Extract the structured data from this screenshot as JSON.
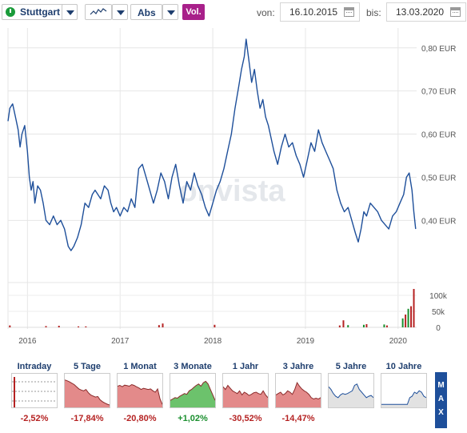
{
  "toolbar": {
    "exchange": "Stuttgart",
    "scale": "Abs",
    "volume_button": "Vol.",
    "from_label": "von:",
    "from_date": "16.10.2015",
    "to_label": "bis:",
    "to_date": "13.03.2020"
  },
  "watermark": "onvista",
  "colors": {
    "line": "#1e4f9a",
    "volume_red": "#b52222",
    "volume_green": "#1a8f2e",
    "perf_negative": "#b52222",
    "perf_positive": "#1a8f2e",
    "vol_button": "#a8208a"
  },
  "chart_data": {
    "type": "line",
    "y_unit": "EUR",
    "ylim": [
      0.28,
      0.82
    ],
    "yticks": [
      "0,80 EUR",
      "0,70 EUR",
      "0,60 EUR",
      "0,50 EUR",
      "0,40 EUR"
    ],
    "ytick_values": [
      0.8,
      0.7,
      0.6,
      0.5,
      0.4
    ],
    "xticks": [
      "2016",
      "2017",
      "2018",
      "2019",
      "2020"
    ],
    "xtick_values": [
      2016.0,
      2017.0,
      2018.0,
      2019.0,
      2020.0
    ],
    "x_start": 2015.79,
    "x_end": 2020.2,
    "series": [
      {
        "values": [
          [
            2015.79,
            0.63
          ],
          [
            2015.81,
            0.66
          ],
          [
            2015.84,
            0.67
          ],
          [
            2015.87,
            0.64
          ],
          [
            2015.9,
            0.61
          ],
          [
            2015.92,
            0.57
          ],
          [
            2015.94,
            0.6
          ],
          [
            2015.97,
            0.62
          ],
          [
            2016.0,
            0.56
          ],
          [
            2016.02,
            0.5
          ],
          [
            2016.04,
            0.47
          ],
          [
            2016.06,
            0.49
          ],
          [
            2016.08,
            0.44
          ],
          [
            2016.11,
            0.48
          ],
          [
            2016.14,
            0.47
          ],
          [
            2016.17,
            0.44
          ],
          [
            2016.2,
            0.4
          ],
          [
            2016.24,
            0.39
          ],
          [
            2016.28,
            0.41
          ],
          [
            2016.32,
            0.39
          ],
          [
            2016.36,
            0.4
          ],
          [
            2016.4,
            0.38
          ],
          [
            2016.44,
            0.34
          ],
          [
            2016.47,
            0.33
          ],
          [
            2016.5,
            0.34
          ],
          [
            2016.54,
            0.36
          ],
          [
            2016.58,
            0.39
          ],
          [
            2016.62,
            0.44
          ],
          [
            2016.66,
            0.43
          ],
          [
            2016.7,
            0.46
          ],
          [
            2016.73,
            0.47
          ],
          [
            2016.76,
            0.46
          ],
          [
            2016.79,
            0.45
          ],
          [
            2016.83,
            0.48
          ],
          [
            2016.87,
            0.47
          ],
          [
            2016.9,
            0.44
          ],
          [
            2016.93,
            0.42
          ],
          [
            2016.96,
            0.43
          ],
          [
            2017.0,
            0.41
          ],
          [
            2017.04,
            0.43
          ],
          [
            2017.08,
            0.42
          ],
          [
            2017.12,
            0.45
          ],
          [
            2017.16,
            0.43
          ],
          [
            2017.2,
            0.52
          ],
          [
            2017.24,
            0.53
          ],
          [
            2017.28,
            0.5
          ],
          [
            2017.32,
            0.47
          ],
          [
            2017.36,
            0.44
          ],
          [
            2017.4,
            0.47
          ],
          [
            2017.44,
            0.51
          ],
          [
            2017.48,
            0.49
          ],
          [
            2017.52,
            0.45
          ],
          [
            2017.56,
            0.5
          ],
          [
            2017.6,
            0.53
          ],
          [
            2017.64,
            0.48
          ],
          [
            2017.68,
            0.44
          ],
          [
            2017.72,
            0.49
          ],
          [
            2017.76,
            0.47
          ],
          [
            2017.8,
            0.51
          ],
          [
            2017.84,
            0.48
          ],
          [
            2017.88,
            0.46
          ],
          [
            2017.92,
            0.43
          ],
          [
            2017.96,
            0.41
          ],
          [
            2018.0,
            0.44
          ],
          [
            2018.04,
            0.47
          ],
          [
            2018.08,
            0.49
          ],
          [
            2018.12,
            0.52
          ],
          [
            2018.16,
            0.56
          ],
          [
            2018.2,
            0.6
          ],
          [
            2018.24,
            0.66
          ],
          [
            2018.28,
            0.71
          ],
          [
            2018.31,
            0.75
          ],
          [
            2018.34,
            0.78
          ],
          [
            2018.36,
            0.82
          ],
          [
            2018.39,
            0.77
          ],
          [
            2018.42,
            0.72
          ],
          [
            2018.45,
            0.75
          ],
          [
            2018.48,
            0.7
          ],
          [
            2018.51,
            0.66
          ],
          [
            2018.54,
            0.68
          ],
          [
            2018.57,
            0.64
          ],
          [
            2018.6,
            0.62
          ],
          [
            2018.63,
            0.59
          ],
          [
            2018.66,
            0.56
          ],
          [
            2018.7,
            0.53
          ],
          [
            2018.74,
            0.57
          ],
          [
            2018.78,
            0.6
          ],
          [
            2018.82,
            0.57
          ],
          [
            2018.86,
            0.58
          ],
          [
            2018.9,
            0.55
          ],
          [
            2018.94,
            0.53
          ],
          [
            2018.98,
            0.5
          ],
          [
            2019.02,
            0.54
          ],
          [
            2019.06,
            0.58
          ],
          [
            2019.1,
            0.56
          ],
          [
            2019.14,
            0.61
          ],
          [
            2019.18,
            0.58
          ],
          [
            2019.22,
            0.56
          ],
          [
            2019.26,
            0.54
          ],
          [
            2019.3,
            0.52
          ],
          [
            2019.34,
            0.47
          ],
          [
            2019.38,
            0.44
          ],
          [
            2019.42,
            0.42
          ],
          [
            2019.46,
            0.43
          ],
          [
            2019.5,
            0.4
          ],
          [
            2019.54,
            0.37
          ],
          [
            2019.57,
            0.35
          ],
          [
            2019.6,
            0.38
          ],
          [
            2019.63,
            0.42
          ],
          [
            2019.66,
            0.41
          ],
          [
            2019.7,
            0.44
          ],
          [
            2019.74,
            0.43
          ],
          [
            2019.78,
            0.42
          ],
          [
            2019.82,
            0.4
          ],
          [
            2019.86,
            0.39
          ],
          [
            2019.9,
            0.38
          ],
          [
            2019.94,
            0.41
          ],
          [
            2019.98,
            0.42
          ],
          [
            2020.02,
            0.44
          ],
          [
            2020.06,
            0.46
          ],
          [
            2020.09,
            0.5
          ],
          [
            2020.12,
            0.51
          ],
          [
            2020.15,
            0.47
          ],
          [
            2020.17,
            0.42
          ],
          [
            2020.19,
            0.38
          ]
        ]
      }
    ],
    "volume": {
      "yticks": [
        "100k",
        "50k",
        "0"
      ],
      "ytick_values": [
        100000,
        50000,
        0
      ],
      "ylim": [
        0,
        130000
      ],
      "bars": [
        {
          "x": 2015.81,
          "v": 6000,
          "dir": "down"
        },
        {
          "x": 2016.2,
          "v": 4000,
          "dir": "down"
        },
        {
          "x": 2016.34,
          "v": 5000,
          "dir": "down"
        },
        {
          "x": 2016.55,
          "v": 3000,
          "dir": "down"
        },
        {
          "x": 2016.63,
          "v": 3000,
          "dir": "down"
        },
        {
          "x": 2017.42,
          "v": 7000,
          "dir": "down"
        },
        {
          "x": 2017.46,
          "v": 12000,
          "dir": "down"
        },
        {
          "x": 2018.02,
          "v": 8000,
          "dir": "down"
        },
        {
          "x": 2019.37,
          "v": 6000,
          "dir": "down"
        },
        {
          "x": 2019.41,
          "v": 22000,
          "dir": "down"
        },
        {
          "x": 2019.46,
          "v": 7000,
          "dir": "up"
        },
        {
          "x": 2019.63,
          "v": 8000,
          "dir": "up"
        },
        {
          "x": 2019.66,
          "v": 10000,
          "dir": "down"
        },
        {
          "x": 2019.85,
          "v": 9000,
          "dir": "up"
        },
        {
          "x": 2019.88,
          "v": 6000,
          "dir": "down"
        },
        {
          "x": 2020.05,
          "v": 28000,
          "dir": "up"
        },
        {
          "x": 2020.08,
          "v": 40000,
          "dir": "down"
        },
        {
          "x": 2020.11,
          "v": 58000,
          "dir": "up"
        },
        {
          "x": 2020.14,
          "v": 66000,
          "dir": "down"
        },
        {
          "x": 2020.17,
          "v": 120000,
          "dir": "down"
        }
      ]
    }
  },
  "performance": [
    {
      "label": "Intraday",
      "value": "-2,52%",
      "trend": "negative",
      "spark": [
        1,
        1,
        1,
        1,
        1,
        1,
        1,
        1,
        1,
        1,
        1,
        1,
        1,
        1,
        1,
        1,
        1,
        1,
        1,
        1
      ]
    },
    {
      "label": "5 Tage",
      "value": "-17,84%",
      "trend": "negative",
      "spark": [
        0.95,
        0.92,
        0.88,
        0.83,
        0.78,
        0.7,
        0.62,
        0.58,
        0.55,
        0.6,
        0.48,
        0.4,
        0.36,
        0.32,
        0.34,
        0.22,
        0.15,
        0.1,
        0.06,
        0.03
      ]
    },
    {
      "label": "1 Monat",
      "value": "-20,80%",
      "trend": "negative",
      "spark": [
        0.72,
        0.75,
        0.7,
        0.76,
        0.74,
        0.72,
        0.78,
        0.75,
        0.7,
        0.66,
        0.6,
        0.64,
        0.62,
        0.6,
        0.62,
        0.55,
        0.5,
        0.62,
        0.25,
        0.05
      ]
    },
    {
      "label": "3 Monate",
      "value": "+1,02%",
      "trend": "positive",
      "spark": [
        0.2,
        0.25,
        0.3,
        0.28,
        0.35,
        0.4,
        0.45,
        0.42,
        0.55,
        0.6,
        0.68,
        0.75,
        0.8,
        0.72,
        0.85,
        0.9,
        0.8,
        0.6,
        0.4,
        0.2
      ]
    },
    {
      "label": "1 Jahr",
      "value": "-30,52%",
      "trend": "negative",
      "spark": [
        0.7,
        0.6,
        0.75,
        0.65,
        0.55,
        0.5,
        0.45,
        0.55,
        0.4,
        0.5,
        0.45,
        0.38,
        0.42,
        0.48,
        0.5,
        0.45,
        0.42,
        0.55,
        0.4,
        0.3
      ]
    },
    {
      "label": "3 Jahre",
      "value": "-14,47%",
      "trend": "negative",
      "spark": [
        0.4,
        0.45,
        0.5,
        0.4,
        0.45,
        0.55,
        0.5,
        0.42,
        0.6,
        0.85,
        0.72,
        0.62,
        0.55,
        0.5,
        0.42,
        0.3,
        0.25,
        0.28,
        0.25,
        0.3
      ]
    },
    {
      "label": "5 Jahre",
      "value": "",
      "trend": "neutral",
      "spark": [
        0.7,
        0.6,
        0.45,
        0.35,
        0.3,
        0.4,
        0.45,
        0.42,
        0.45,
        0.5,
        0.55,
        0.75,
        0.8,
        0.6,
        0.5,
        0.4,
        0.3,
        0.35,
        0.38,
        0.3
      ]
    },
    {
      "label": "10 Jahre",
      "value": "",
      "trend": "neutral",
      "spark": [
        0.05,
        0.05,
        0.05,
        0.05,
        0.05,
        0.05,
        0.05,
        0.05,
        0.05,
        0.05,
        0.05,
        0.05,
        0.3,
        0.35,
        0.5,
        0.45,
        0.55,
        0.5,
        0.35,
        0.3
      ]
    }
  ],
  "max_button": "MAX"
}
